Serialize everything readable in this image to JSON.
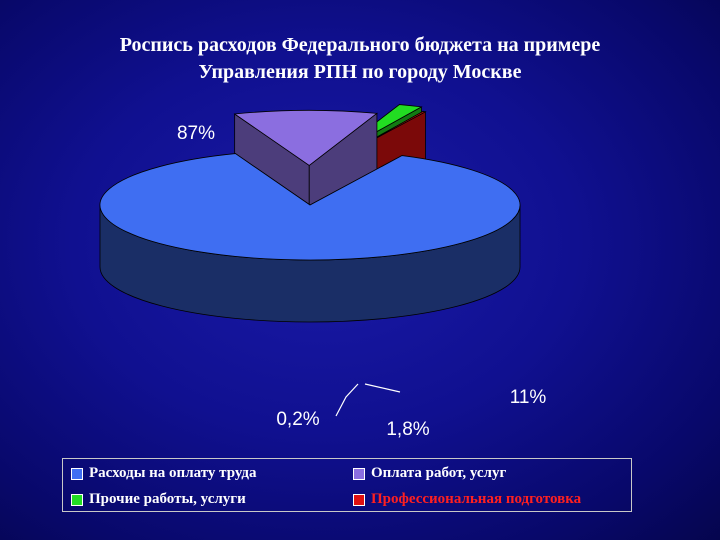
{
  "title": {
    "line1": "Роспись расходов Федерального бюджета на примере",
    "line2": "Управления РПН по городу Москве"
  },
  "chart_data": {
    "type": "pie",
    "style": "3d-exploded",
    "slices": [
      {
        "label": "Расходы на оплату труда",
        "value": 87,
        "display": "87%",
        "color": "#3f6ef2",
        "text_color": "#ffffff"
      },
      {
        "label": "Оплата работ, услуг",
        "value": 11,
        "display": "11%",
        "color": "#8b6ee0",
        "text_color": "#ffffff"
      },
      {
        "label": "Прочие работы, услуги",
        "value": 1.8,
        "display": "1,8%",
        "color": "#22dd22",
        "text_color": "#ffffff"
      },
      {
        "label": "Профессиональная подготовка",
        "value": 0.2,
        "display": "0,2%",
        "color": "#e01010",
        "text_color": "#ff2020"
      }
    ],
    "legend_position": "bottom"
  }
}
